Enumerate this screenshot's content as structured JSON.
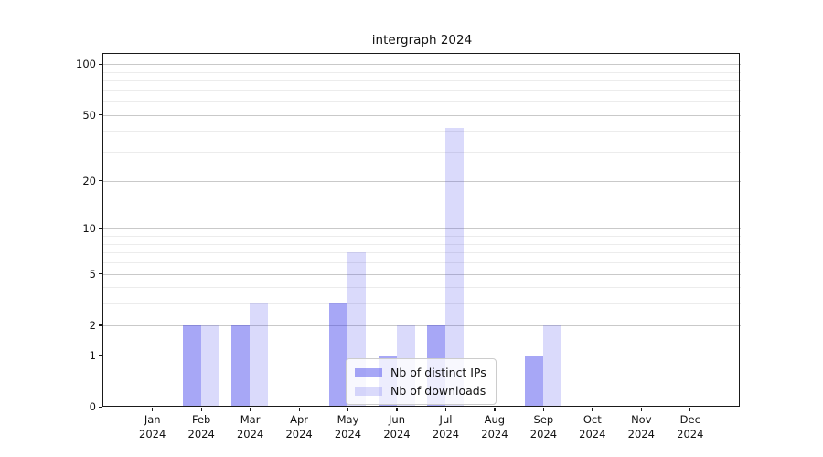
{
  "chart_data": {
    "type": "bar",
    "title": "intergraph 2024",
    "categories": [
      "Jan",
      "Feb",
      "Mar",
      "Apr",
      "May",
      "Jun",
      "Jul",
      "Aug",
      "Sep",
      "Oct",
      "Nov",
      "Dec"
    ],
    "category_year": "2024",
    "series": [
      {
        "name": "Nb of distinct IPs",
        "key": "distinct-ips",
        "color": "rgba(60,60,235,0.45)",
        "values": [
          0,
          2,
          2,
          0,
          3,
          1,
          2,
          0,
          1,
          0,
          0,
          0
        ]
      },
      {
        "name": "Nb of downloads",
        "key": "downloads",
        "color": "rgba(60,60,235,0.19)",
        "values": [
          0,
          2,
          3,
          0,
          7,
          2,
          42,
          0,
          2,
          0,
          0,
          0
        ]
      }
    ],
    "y_scale": "log10(1+x)",
    "y_major_ticks": [
      0,
      1,
      2,
      5,
      10,
      20,
      50,
      100
    ],
    "y_minor_ticks": [
      3,
      4,
      6,
      7,
      8,
      9,
      30,
      40,
      60,
      70,
      80,
      90
    ],
    "ylim": [
      0,
      115
    ],
    "grid": "both",
    "legend_position": "lower center",
    "colors": {
      "bar_dark": "#a9a9f6",
      "bar_light": "#dadaf7",
      "grid_major": "#c9c9c9",
      "grid_minor": "#ececec",
      "axis": "#1a1a1a"
    }
  }
}
